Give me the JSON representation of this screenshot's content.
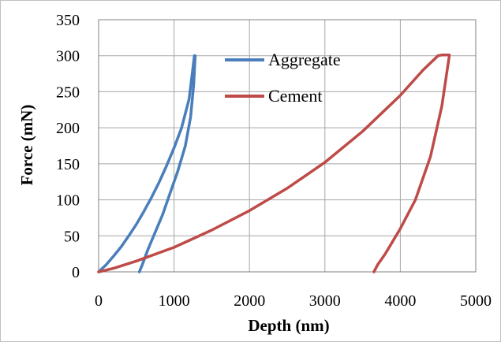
{
  "chart_data": {
    "type": "line",
    "xlabel": "Depth (nm)",
    "ylabel": "Force (mN)",
    "xlim": [
      0,
      5000
    ],
    "ylim": [
      0,
      350
    ],
    "x_ticks": [
      0,
      1000,
      2000,
      3000,
      4000,
      5000
    ],
    "y_ticks": [
      0,
      50,
      100,
      150,
      200,
      250,
      300,
      350
    ],
    "grid": true,
    "legend_position": "top-center",
    "series": [
      {
        "name": "Aggregate",
        "color": "#4a7ebb",
        "x": [
          0,
          100,
          200,
          300,
          400,
          500,
          600,
          700,
          800,
          900,
          1000,
          1100,
          1200,
          1270,
          1280,
          1260,
          1220,
          1150,
          1050,
          950,
          850,
          750,
          650,
          580,
          540
        ],
        "y": [
          0,
          10,
          22,
          35,
          50,
          66,
          84,
          103,
          124,
          147,
          172,
          200,
          240,
          300,
          300,
          260,
          215,
          175,
          140,
          110,
          80,
          55,
          30,
          10,
          0
        ]
      },
      {
        "name": "Cement",
        "color": "#be4b48",
        "x": [
          0,
          200,
          500,
          1000,
          1500,
          2000,
          2500,
          3000,
          3500,
          4000,
          4300,
          4500,
          4550,
          4650,
          4650,
          4550,
          4400,
          4200,
          4000,
          3800,
          3700,
          3650
        ],
        "y": [
          0,
          5,
          15,
          34,
          58,
          85,
          116,
          152,
          195,
          245,
          280,
          300,
          301,
          301,
          300,
          230,
          160,
          100,
          60,
          25,
          10,
          0
        ]
      }
    ]
  }
}
